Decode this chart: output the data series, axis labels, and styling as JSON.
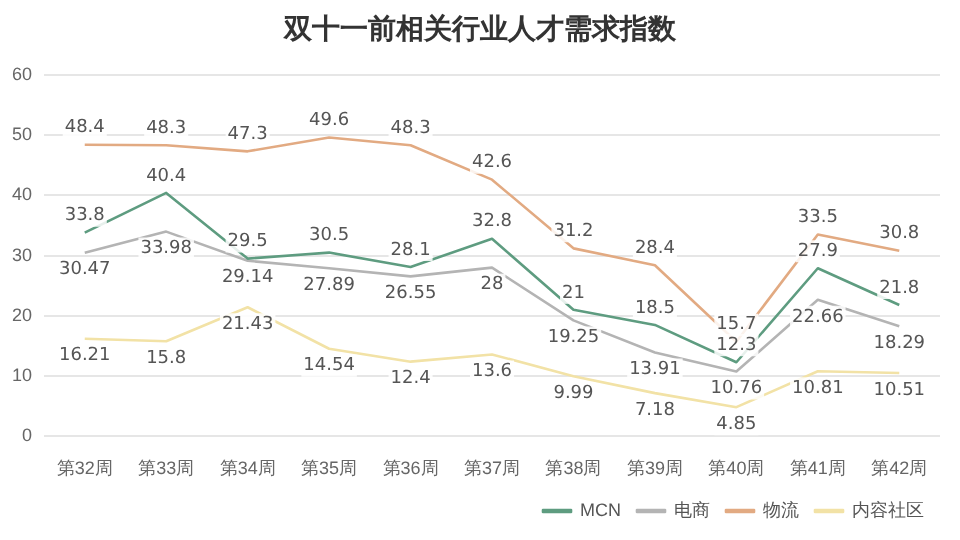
{
  "chart_data": {
    "type": "line",
    "title": "双十一前相关行业人才需求指数",
    "categories": [
      "第32周",
      "第33周",
      "第34周",
      "第35周",
      "第36周",
      "第37周",
      "第38周",
      "第39周",
      "第40周",
      "第41周",
      "第42周"
    ],
    "series": [
      {
        "name": "MCN",
        "color": "#5e9c80",
        "values": [
          33.8,
          40.4,
          29.5,
          30.5,
          28.1,
          32.8,
          21,
          18.5,
          12.3,
          27.9,
          21.8
        ]
      },
      {
        "name": "电商",
        "color": "#b4b4b4",
        "values": [
          30.47,
          33.98,
          29.14,
          27.89,
          26.55,
          28,
          19.25,
          13.91,
          10.76,
          22.66,
          18.29
        ]
      },
      {
        "name": "物流",
        "color": "#e2aa82",
        "values": [
          48.4,
          48.3,
          47.3,
          49.6,
          48.3,
          42.6,
          31.2,
          28.4,
          15.7,
          33.5,
          30.8
        ]
      },
      {
        "name": "内容社区",
        "color": "#f2e2a6",
        "values": [
          16.21,
          15.8,
          21.43,
          14.54,
          12.4,
          13.6,
          9.99,
          7.18,
          4.85,
          10.81,
          10.51
        ]
      }
    ],
    "ylim": [
      0,
      60
    ],
    "yticks": [
      0,
      10,
      20,
      30,
      40,
      50,
      60
    ],
    "grid": "y",
    "legend": "bottom",
    "marker": "none",
    "line_style": "solid",
    "data_labels": true
  }
}
